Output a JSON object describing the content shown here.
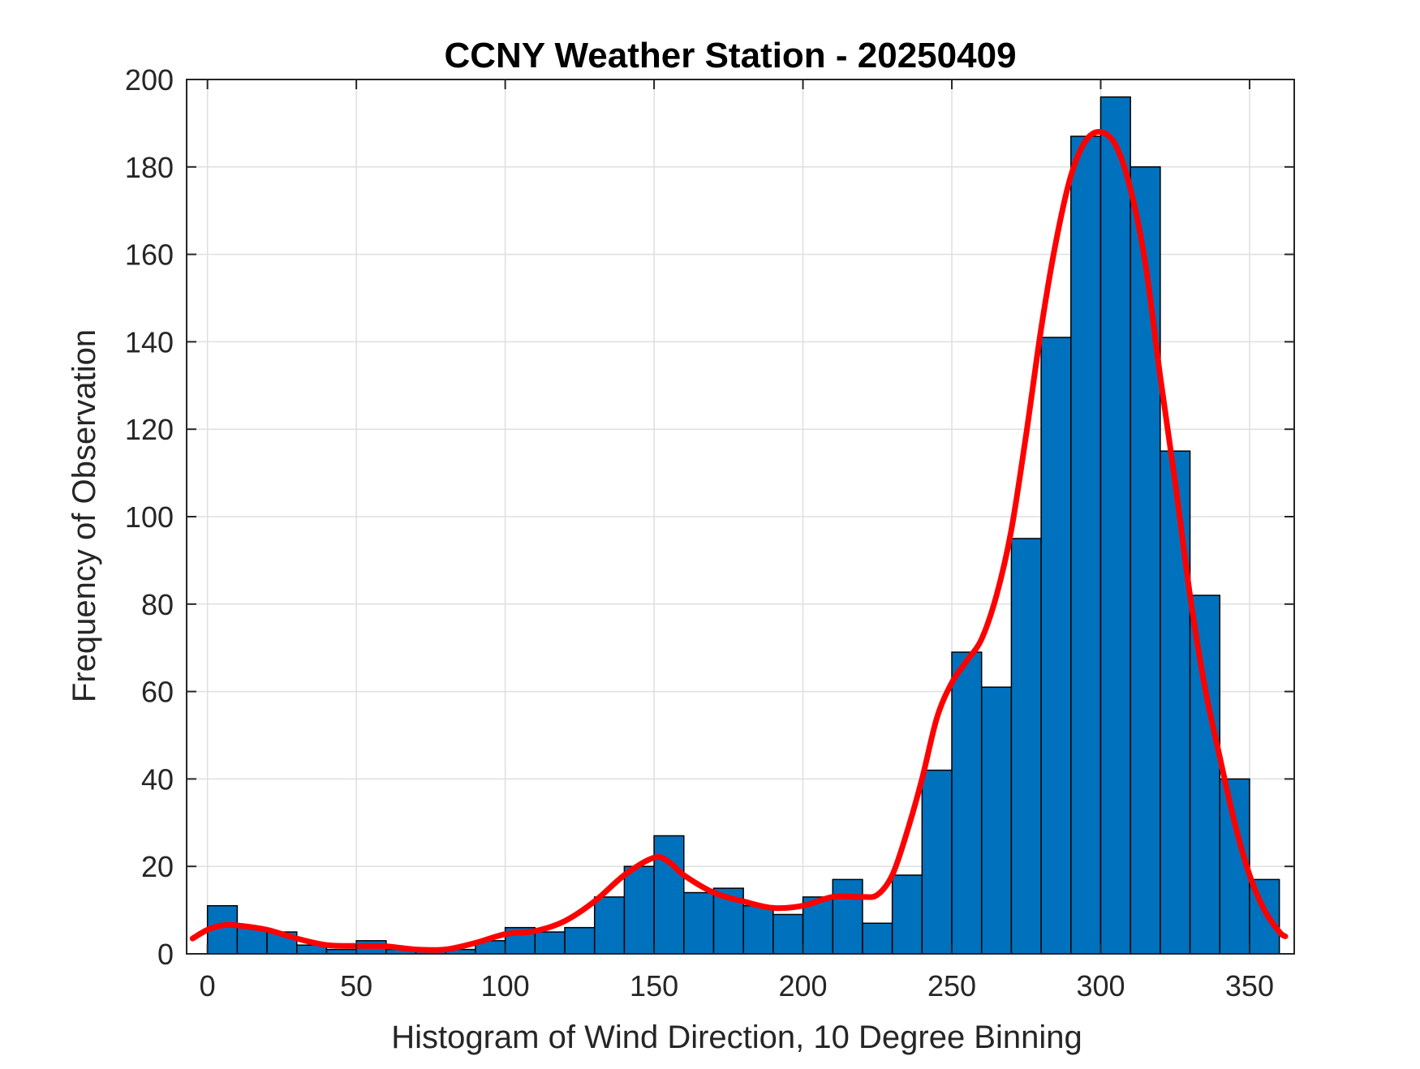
{
  "chart_data": {
    "type": "bar",
    "title": "CCNY Weather Station - 20250409",
    "xlabel": "Histogram of Wind Direction, 10 Degree Binning",
    "ylabel": "Frequency of Observation",
    "xlim": [
      -7,
      365
    ],
    "ylim": [
      0,
      200
    ],
    "xticks": [
      0,
      50,
      100,
      150,
      200,
      250,
      300,
      350
    ],
    "yticks": [
      0,
      20,
      40,
      60,
      80,
      100,
      120,
      140,
      160,
      180,
      200
    ],
    "grid": true,
    "bin_width": 10,
    "bins": [
      {
        "start": 0,
        "count": 11
      },
      {
        "start": 10,
        "count": 6
      },
      {
        "start": 20,
        "count": 5
      },
      {
        "start": 30,
        "count": 2
      },
      {
        "start": 40,
        "count": 1
      },
      {
        "start": 50,
        "count": 3
      },
      {
        "start": 60,
        "count": 1
      },
      {
        "start": 70,
        "count": 1
      },
      {
        "start": 80,
        "count": 1
      },
      {
        "start": 90,
        "count": 3
      },
      {
        "start": 100,
        "count": 6
      },
      {
        "start": 110,
        "count": 5
      },
      {
        "start": 120,
        "count": 6
      },
      {
        "start": 130,
        "count": 13
      },
      {
        "start": 140,
        "count": 20
      },
      {
        "start": 150,
        "count": 27
      },
      {
        "start": 160,
        "count": 14
      },
      {
        "start": 170,
        "count": 15
      },
      {
        "start": 180,
        "count": 11
      },
      {
        "start": 190,
        "count": 9
      },
      {
        "start": 200,
        "count": 13
      },
      {
        "start": 210,
        "count": 17
      },
      {
        "start": 220,
        "count": 7
      },
      {
        "start": 230,
        "count": 18
      },
      {
        "start": 240,
        "count": 42
      },
      {
        "start": 250,
        "count": 69
      },
      {
        "start": 260,
        "count": 61
      },
      {
        "start": 270,
        "count": 95
      },
      {
        "start": 280,
        "count": 141
      },
      {
        "start": 290,
        "count": 187
      },
      {
        "start": 300,
        "count": 196
      },
      {
        "start": 310,
        "count": 180
      },
      {
        "start": 320,
        "count": 115
      },
      {
        "start": 330,
        "count": 82
      },
      {
        "start": 340,
        "count": 40
      },
      {
        "start": 350,
        "count": 17
      }
    ],
    "fit_curve": {
      "x": [
        -5,
        0,
        5,
        10,
        20,
        30,
        40,
        50,
        60,
        70,
        80,
        90,
        100,
        110,
        120,
        130,
        140,
        150,
        155,
        160,
        170,
        180,
        190,
        200,
        210,
        220,
        225,
        230,
        235,
        240,
        245,
        250,
        255,
        260,
        265,
        270,
        275,
        280,
        285,
        290,
        295,
        300,
        305,
        310,
        315,
        320,
        325,
        330,
        335,
        340,
        345,
        350,
        355,
        360,
        362
      ],
      "y": [
        3.5,
        5.5,
        6.5,
        6.5,
        5.5,
        3.5,
        2,
        1.8,
        1.7,
        1,
        1,
        2.5,
        4.5,
        5.2,
        7.5,
        12,
        18,
        22,
        21,
        18,
        14,
        12,
        10.5,
        11,
        13,
        13,
        13.5,
        18,
        28,
        40,
        54,
        62,
        67,
        72,
        82,
        97,
        119,
        143,
        163,
        178,
        186,
        188,
        185,
        175,
        158,
        132,
        108,
        82,
        61,
        45,
        30,
        18,
        10,
        5,
        4
      ]
    },
    "colors": {
      "bar_fill": "#0072BD",
      "bar_edge": "#000000",
      "curve": "#FF0000",
      "grid": "#dfdfdf",
      "axes": "#262626"
    }
  }
}
